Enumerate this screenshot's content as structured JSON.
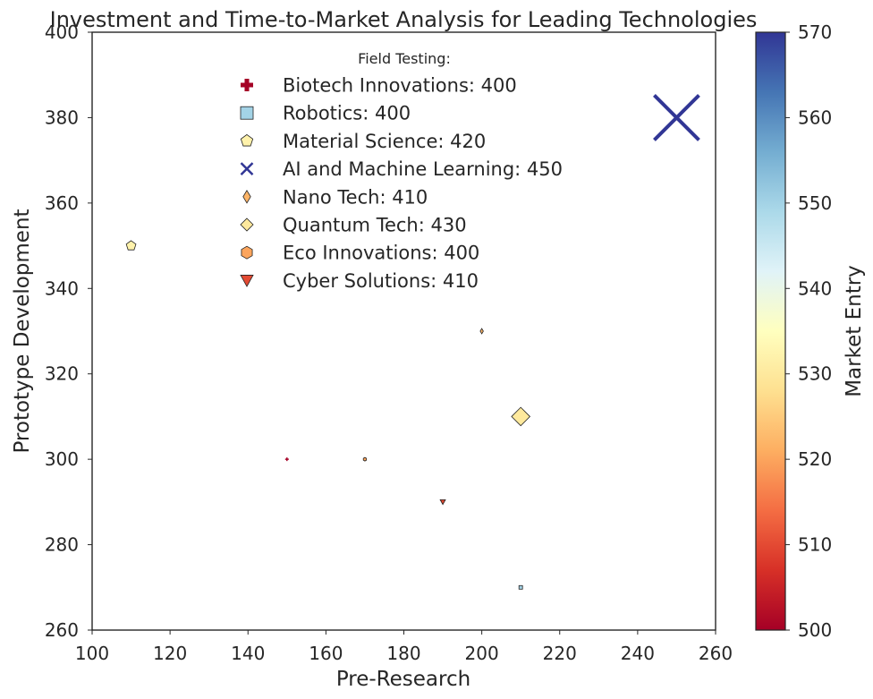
{
  "chart_data": {
    "type": "scatter",
    "title": "Investment and Time-to-Market Analysis for Leading Technologies",
    "xlabel": "Pre-Research",
    "ylabel": "Prototype Development",
    "xlim": [
      100,
      260
    ],
    "ylim": [
      260,
      400
    ],
    "xticks": [
      "100",
      "120",
      "140",
      "160",
      "180",
      "200",
      "220",
      "240",
      "260"
    ],
    "yticks": [
      "260",
      "280",
      "300",
      "320",
      "340",
      "360",
      "380",
      "400"
    ],
    "colorbar": {
      "label": "Market Entry",
      "range": [
        500,
        570
      ],
      "ticks": [
        "500",
        "510",
        "520",
        "530",
        "540",
        "550",
        "560",
        "570"
      ],
      "colormap": "RdYlBu"
    },
    "legend": {
      "title": "Field Testing:",
      "placement": "upper-center"
    },
    "grid": false,
    "size_encodes": "Field Testing",
    "points": [
      {
        "label": "Biotech Innovations: 400",
        "x": 150,
        "y": 300,
        "field_testing": 400,
        "market_entry": 500,
        "marker": "plus"
      },
      {
        "label": "Robotics: 400",
        "x": 210,
        "y": 270,
        "field_testing": 400,
        "market_entry": 550,
        "marker": "square"
      },
      {
        "label": "Material Science: 420",
        "x": 110,
        "y": 350,
        "field_testing": 420,
        "market_entry": 532,
        "marker": "pentagon"
      },
      {
        "label": "AI and Machine Learning: 450",
        "x": 250,
        "y": 380,
        "field_testing": 450,
        "market_entry": 570,
        "marker": "x"
      },
      {
        "label": "Nano Tech: 410",
        "x": 200,
        "y": 330,
        "field_testing": 410,
        "market_entry": 522,
        "marker": "thin-diamond"
      },
      {
        "label": "Quantum Tech: 430",
        "x": 210,
        "y": 310,
        "field_testing": 430,
        "market_entry": 530,
        "marker": "diamond"
      },
      {
        "label": "Eco Innovations: 400",
        "x": 170,
        "y": 300,
        "field_testing": 400,
        "market_entry": 520,
        "marker": "hexagon"
      },
      {
        "label": "Cyber Solutions: 410",
        "x": 190,
        "y": 290,
        "field_testing": 410,
        "market_entry": 510,
        "marker": "triangle-down"
      }
    ]
  }
}
